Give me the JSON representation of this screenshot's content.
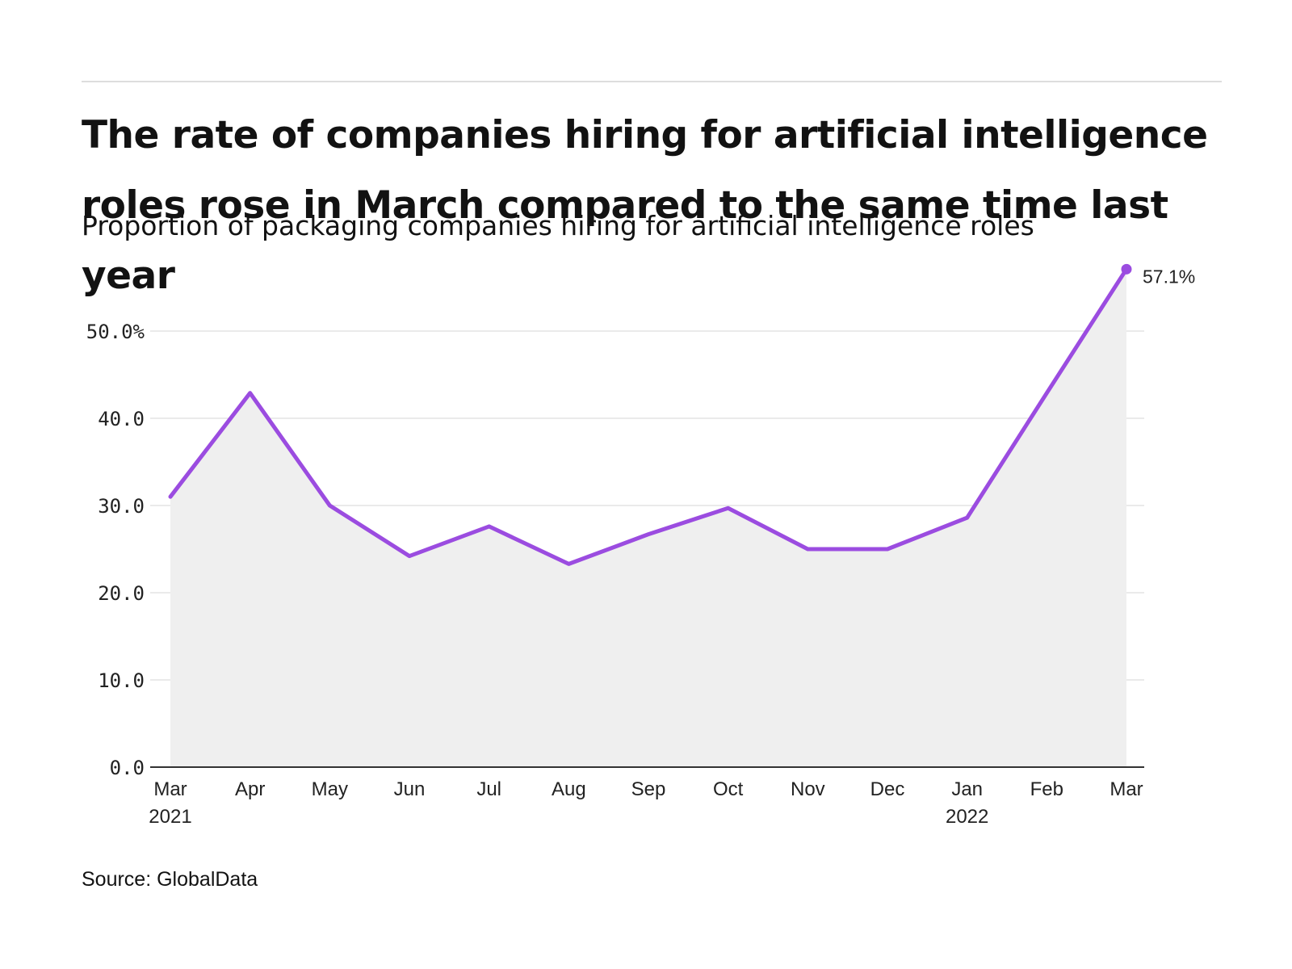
{
  "header": {
    "title": "The rate of companies hiring for artificial intelligence roles rose in March compared to the same time last year",
    "subtitle": "Proportion of packaging companies hiring for artificial intelligence roles"
  },
  "footer": {
    "source": "Source: GlobalData"
  },
  "colors": {
    "line": "#9b4ce0",
    "area": "#efefef",
    "grid": "#e3e3e3",
    "axis": "#333333"
  },
  "chart_data": {
    "type": "area",
    "title": "The rate of companies hiring for artificial intelligence roles rose in March compared to the same time last year",
    "subtitle": "Proportion of packaging companies hiring for artificial intelligence roles",
    "xlabel": "",
    "ylabel": "",
    "ylim": [
      0,
      60
    ],
    "grid": true,
    "legend": "none",
    "categories": [
      "Mar",
      "Apr",
      "May",
      "Jun",
      "Jul",
      "Aug",
      "Sep",
      "Oct",
      "Nov",
      "Dec",
      "Jan",
      "Feb",
      "Mar"
    ],
    "x_year_labels": [
      "2021",
      "",
      "",
      "",
      "",
      "",
      "",
      "",
      "",
      "",
      "2022",
      "",
      ""
    ],
    "y_ticks": [
      0,
      10,
      20,
      30,
      40,
      50
    ],
    "y_tick_labels": [
      "0.0",
      "10.0",
      "20.0",
      "30.0",
      "40.0",
      "50.0%"
    ],
    "series": [
      {
        "values": [
          31.0,
          42.9,
          30.0,
          24.2,
          27.6,
          23.3,
          26.7,
          29.7,
          25.0,
          25.0,
          28.6,
          42.9,
          57.1
        ]
      }
    ],
    "annotations": [
      {
        "index": 12,
        "text": "57.1%"
      }
    ]
  }
}
